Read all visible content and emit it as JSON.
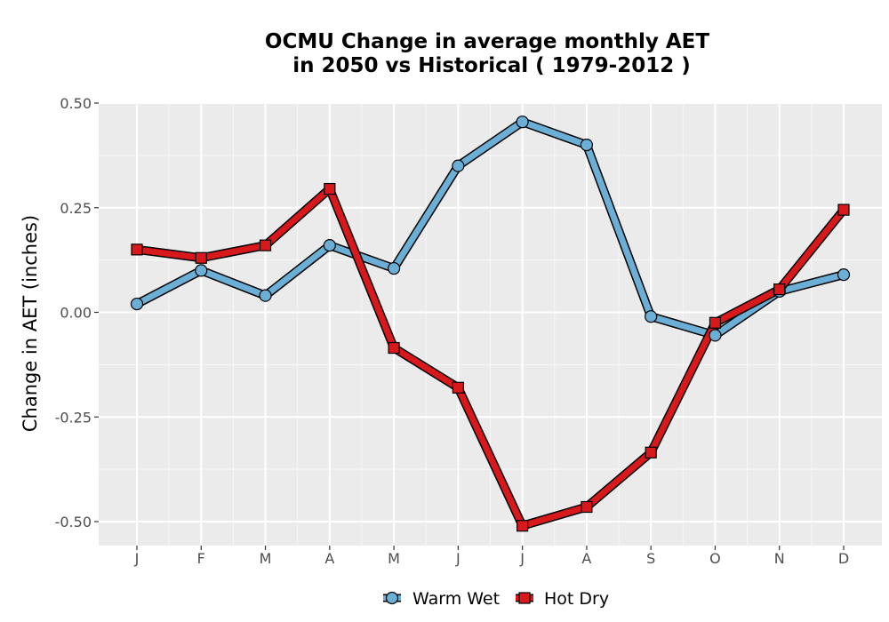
{
  "chart_data": {
    "type": "line",
    "title_line1": "OCMU  Change in average monthly AET",
    "title_line2": "in 2050 vs Historical ( 1979-2012 )",
    "xlabel": "",
    "ylabel": "Change in AET (inches)",
    "categories": [
      "J",
      "F",
      "M",
      "A",
      "M",
      "J",
      "J",
      "A",
      "S",
      "O",
      "N",
      "D"
    ],
    "ylim": [
      -0.55,
      0.5
    ],
    "y_ticks": [
      -0.5,
      -0.25,
      0.0,
      0.25,
      0.5
    ],
    "y_tick_labels": [
      "-0.50",
      "-0.25",
      "0.00",
      "0.25",
      "0.50"
    ],
    "grid": true,
    "legend_position": "bottom",
    "series": [
      {
        "name": "Warm Wet",
        "marker": "circle",
        "color": "#6baed6",
        "values": [
          0.02,
          0.1,
          0.04,
          0.16,
          0.105,
          0.35,
          0.455,
          0.4,
          -0.01,
          -0.055,
          0.05,
          0.09
        ]
      },
      {
        "name": "Hot Dry",
        "marker": "square",
        "color": "#d7191c",
        "values": [
          0.15,
          0.13,
          0.16,
          0.295,
          -0.085,
          -0.18,
          -0.51,
          -0.465,
          -0.335,
          -0.025,
          0.055,
          0.245
        ]
      }
    ]
  },
  "colors": {
    "panel_background": "#ebebeb",
    "gridline": "#ffffff",
    "outline": "#000000"
  }
}
